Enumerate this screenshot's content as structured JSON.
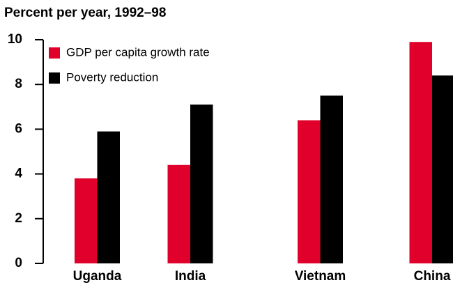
{
  "chart_data": {
    "type": "bar",
    "title": "Percent per year, 1992–98",
    "categories": [
      "Uganda",
      "India",
      "Vietnam",
      "China"
    ],
    "series": [
      {
        "name": "GDP per capita growth rate",
        "color": "#e0002b",
        "values": [
          3.8,
          4.4,
          6.4,
          9.9
        ]
      },
      {
        "name": "Poverty reduction",
        "color": "#000000",
        "values": [
          5.9,
          7.1,
          7.5,
          8.4
        ]
      }
    ],
    "ylim": [
      0,
      10
    ],
    "yticks": [
      0,
      2,
      4,
      6,
      8,
      10
    ],
    "legend": "upper left"
  }
}
